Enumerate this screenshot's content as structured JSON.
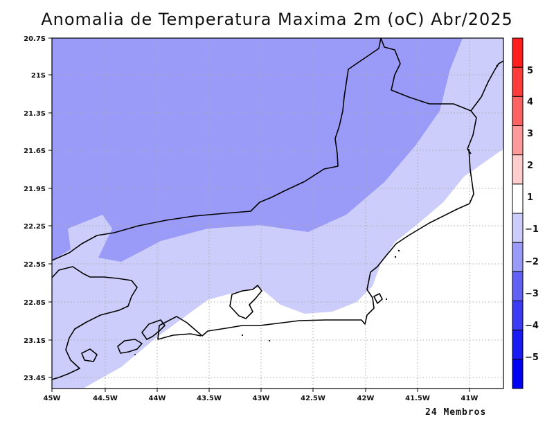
{
  "title": "Anomalia de Temperatura Maxima 2m (oC) Abr/2025",
  "footnote": "24 Membros",
  "map": {
    "x_ticks": [
      "45W",
      "44.5W",
      "44W",
      "43.5W",
      "43W",
      "42.5W",
      "42W",
      "41.5W",
      "41W"
    ],
    "y_ticks": [
      "20.7S",
      "21S",
      "21.3S",
      "21.6S",
      "21.9S",
      "22.2S",
      "22.5S",
      "22.8S",
      "23.1S",
      "23.4S"
    ],
    "shading_colors": {
      "below_minus_2": "#9a9af8",
      "minus_2_to_minus_1": "#cccdfb",
      "minus_1_to_1": "#ffffff"
    }
  },
  "colorbar": {
    "labels": [
      "5",
      "4",
      "3",
      "2",
      "1",
      "−1",
      "−2",
      "−3",
      "−4",
      "−5"
    ],
    "colors": [
      "#ff1d1d",
      "#ff3c3c",
      "#ff6262",
      "#ff9a9a",
      "#ffcdcd",
      "#ffffff",
      "#cccdfb",
      "#9a9af8",
      "#6161f6",
      "#3b3bf5",
      "#1a1af5",
      "#0000f5"
    ]
  }
}
